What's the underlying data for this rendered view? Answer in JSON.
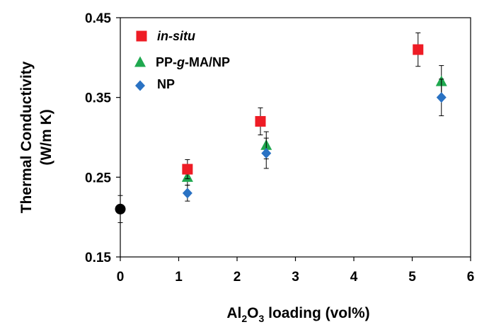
{
  "chart_data": {
    "type": "scatter",
    "xlabel": {
      "parts": [
        {
          "text": "Al",
          "sub": false
        },
        {
          "text": "2",
          "sub": true
        },
        {
          "text": "O",
          "sub": false
        },
        {
          "text": "3",
          "sub": true
        },
        {
          "text": " loading (vol%)",
          "sub": false
        }
      ]
    },
    "ylabel": {
      "line1": "Thermal Conductivity",
      "line2": "(W/m K)"
    },
    "xlim": [
      0,
      6
    ],
    "ylim": [
      0.15,
      0.45
    ],
    "xticks": [
      0,
      1,
      2,
      3,
      4,
      5,
      6
    ],
    "xtick_labels": [
      "0",
      "1",
      "2",
      "3",
      "4",
      "5",
      "6"
    ],
    "yticks": [
      0.15,
      0.25,
      0.35,
      0.45
    ],
    "ytick_labels": [
      "0.15",
      "0.25",
      "0.35",
      "0.45"
    ],
    "grid": false,
    "legend_position": "top-left",
    "series": [
      {
        "name": "in-situ",
        "italic": true,
        "marker": "square",
        "color": "#ee1c25",
        "points": [
          {
            "x": 1.15,
            "y": 0.26,
            "err": 0.012
          },
          {
            "x": 2.4,
            "y": 0.32,
            "err": 0.017
          },
          {
            "x": 5.1,
            "y": 0.41,
            "err": 0.021
          }
        ]
      },
      {
        "name_parts": [
          {
            "text": "PP-",
            "italic": false
          },
          {
            "text": "g",
            "italic": true
          },
          {
            "text": "-MA/NP",
            "italic": false
          }
        ],
        "marker": "triangle",
        "color": "#1fa84f",
        "points": [
          {
            "x": 1.15,
            "y": 0.25,
            "err": 0.01
          },
          {
            "x": 2.5,
            "y": 0.29,
            "err": 0.017
          },
          {
            "x": 5.5,
            "y": 0.37,
            "err": 0.02
          }
        ]
      },
      {
        "name": "NP",
        "marker": "diamond",
        "color": "#2a72c3",
        "points": [
          {
            "x": 1.15,
            "y": 0.23,
            "err": 0.01
          },
          {
            "x": 2.5,
            "y": 0.28,
            "err": 0.019
          },
          {
            "x": 5.5,
            "y": 0.35,
            "err": 0.023
          }
        ]
      },
      {
        "marker": "circle",
        "color": "#000000",
        "show_in_legend": false,
        "points": [
          {
            "x": 0,
            "y": 0.21,
            "err": 0.017
          }
        ]
      }
    ]
  }
}
